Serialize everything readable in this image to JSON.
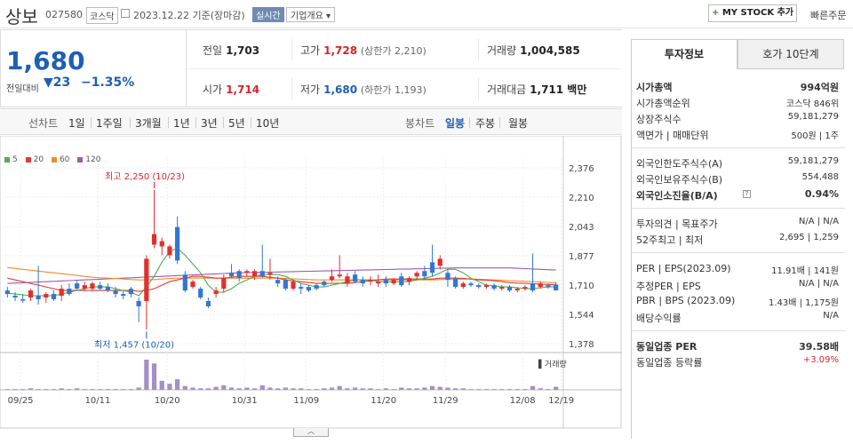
{
  "header": {
    "name": "상보",
    "code": "027580",
    "market": "코스닥",
    "date": "2023.12.22 기준(장마감)",
    "tag_realtime": "실시간",
    "tag_company": "기업개요 ▾",
    "mystock": "MY STOCK 추가",
    "quick_order": "빠른주문"
  },
  "price": {
    "current": "1,680",
    "change_label": "전일대비",
    "change": "▼23",
    "pct": "−1.35%"
  },
  "stats": {
    "prev_k": "전일",
    "prev_v": "1,703",
    "high_k": "고가",
    "high_v": "1,728",
    "high_limit": "(상한가 2,210)",
    "vol_k": "거래량",
    "vol_v": "1,004,585",
    "open_k": "시가",
    "open_v": "1,714",
    "low_k": "저가",
    "low_v": "1,680",
    "low_limit": "(하한가 1,193)",
    "amt_k": "거래대금",
    "amt_v": "1,711 백만"
  },
  "toolbar": {
    "line_label": "선차트",
    "periods": [
      "1일",
      "1주일",
      "3개월",
      "1년",
      "3년",
      "5년",
      "10년"
    ],
    "candle_label": "봉차트",
    "candles": [
      "일봉",
      "주봉",
      "월봉"
    ],
    "selected_candle": "일봉"
  },
  "legend": [
    {
      "name": "5",
      "color": "#4caf50"
    },
    {
      "name": "20",
      "color": "#e53935"
    },
    {
      "name": "60",
      "color": "#f08c2a"
    },
    {
      "name": "120",
      "color": "#9c59b6"
    }
  ],
  "chart_data": {
    "type": "candlestick",
    "yticks": [
      "2,376",
      "2,210",
      "2,043",
      "1,877",
      "1,710",
      "1,544",
      "1,378"
    ],
    "xticks": [
      "09/25",
      "10/11",
      "10/20",
      "10/31",
      "11/09",
      "11/20",
      "11/29",
      "12/08",
      "12/19"
    ],
    "annot_high": "최고 2,250 (10/23)",
    "annot_low": "최저 1,457 (10/20)",
    "volume_label": "거래량",
    "candles": [
      {
        "o": 1680,
        "c": 1660,
        "h": 1700,
        "l": 1640
      },
      {
        "o": 1650,
        "c": 1640,
        "h": 1670,
        "l": 1620
      },
      {
        "o": 1630,
        "c": 1625,
        "h": 1660,
        "l": 1610
      },
      {
        "o": 1640,
        "c": 1680,
        "h": 1690,
        "l": 1620
      },
      {
        "o": 1650,
        "c": 1630,
        "h": 1820,
        "l": 1600
      },
      {
        "o": 1640,
        "c": 1660,
        "h": 1670,
        "l": 1610
      },
      {
        "o": 1660,
        "c": 1630,
        "h": 1680,
        "l": 1620
      },
      {
        "o": 1650,
        "c": 1690,
        "h": 1710,
        "l": 1620
      },
      {
        "o": 1690,
        "c": 1660,
        "h": 1720,
        "l": 1650
      },
      {
        "o": 1720,
        "c": 1690,
        "h": 1740,
        "l": 1680
      },
      {
        "o": 1690,
        "c": 1710,
        "h": 1730,
        "l": 1680
      },
      {
        "o": 1690,
        "c": 1720,
        "h": 1730,
        "l": 1680
      },
      {
        "o": 1710,
        "c": 1690,
        "h": 1730,
        "l": 1680
      },
      {
        "o": 1700,
        "c": 1680,
        "h": 1720,
        "l": 1670
      },
      {
        "o": 1680,
        "c": 1660,
        "h": 1700,
        "l": 1640
      },
      {
        "o": 1660,
        "c": 1650,
        "h": 1680,
        "l": 1630
      },
      {
        "o": 1690,
        "c": 1660,
        "h": 1700,
        "l": 1640
      },
      {
        "o": 1620,
        "c": 1590,
        "h": 1640,
        "l": 1500
      },
      {
        "o": 1620,
        "c": 1860,
        "h": 1880,
        "l": 1457
      },
      {
        "o": 1940,
        "c": 2000,
        "h": 2250,
        "l": 1920
      },
      {
        "o": 1930,
        "c": 1960,
        "h": 1980,
        "l": 1880
      },
      {
        "o": 1880,
        "c": 1930,
        "h": 1940,
        "l": 1860
      },
      {
        "o": 2040,
        "c": 1850,
        "h": 2100,
        "l": 1830
      },
      {
        "o": 1770,
        "c": 1680,
        "h": 1790,
        "l": 1670
      },
      {
        "o": 1700,
        "c": 1730,
        "h": 1740,
        "l": 1690
      },
      {
        "o": 1690,
        "c": 1640,
        "h": 1700,
        "l": 1630
      },
      {
        "o": 1620,
        "c": 1590,
        "h": 1640,
        "l": 1580
      },
      {
        "o": 1660,
        "c": 1680,
        "h": 1700,
        "l": 1640
      },
      {
        "o": 1690,
        "c": 1750,
        "h": 1770,
        "l": 1670
      },
      {
        "o": 1780,
        "c": 1760,
        "h": 1830,
        "l": 1750
      },
      {
        "o": 1790,
        "c": 1750,
        "h": 1800,
        "l": 1730
      },
      {
        "o": 1780,
        "c": 1790,
        "h": 1800,
        "l": 1760
      },
      {
        "o": 1760,
        "c": 1790,
        "h": 1800,
        "l": 1740
      },
      {
        "o": 1790,
        "c": 1760,
        "h": 1940,
        "l": 1750
      },
      {
        "o": 1770,
        "c": 1780,
        "h": 1860,
        "l": 1740
      },
      {
        "o": 1740,
        "c": 1720,
        "h": 1760,
        "l": 1700
      },
      {
        "o": 1740,
        "c": 1690,
        "h": 1750,
        "l": 1680
      },
      {
        "o": 1690,
        "c": 1730,
        "h": 1740,
        "l": 1680
      },
      {
        "o": 1700,
        "c": 1690,
        "h": 1720,
        "l": 1660
      },
      {
        "o": 1700,
        "c": 1680,
        "h": 1710,
        "l": 1670
      },
      {
        "o": 1710,
        "c": 1690,
        "h": 1720,
        "l": 1680
      },
      {
        "o": 1730,
        "c": 1710,
        "h": 1740,
        "l": 1700
      },
      {
        "o": 1740,
        "c": 1760,
        "h": 1800,
        "l": 1730
      },
      {
        "o": 1760,
        "c": 1770,
        "h": 1880,
        "l": 1750
      },
      {
        "o": 1720,
        "c": 1760,
        "h": 1780,
        "l": 1700
      },
      {
        "o": 1770,
        "c": 1730,
        "h": 1790,
        "l": 1720
      },
      {
        "o": 1740,
        "c": 1720,
        "h": 1760,
        "l": 1700
      },
      {
        "o": 1730,
        "c": 1740,
        "h": 1760,
        "l": 1710
      },
      {
        "o": 1720,
        "c": 1730,
        "h": 1770,
        "l": 1700
      },
      {
        "o": 1740,
        "c": 1720,
        "h": 1760,
        "l": 1700
      },
      {
        "o": 1720,
        "c": 1740,
        "h": 1750,
        "l": 1710
      },
      {
        "o": 1760,
        "c": 1710,
        "h": 1780,
        "l": 1700
      },
      {
        "o": 1730,
        "c": 1750,
        "h": 1760,
        "l": 1710
      },
      {
        "o": 1760,
        "c": 1780,
        "h": 1790,
        "l": 1740
      },
      {
        "o": 1790,
        "c": 1760,
        "h": 1820,
        "l": 1740
      },
      {
        "o": 1840,
        "c": 1780,
        "h": 1940,
        "l": 1760
      },
      {
        "o": 1820,
        "c": 1860,
        "h": 1880,
        "l": 1800
      },
      {
        "o": 1780,
        "c": 1740,
        "h": 1800,
        "l": 1700
      },
      {
        "o": 1750,
        "c": 1700,
        "h": 1760,
        "l": 1690
      },
      {
        "o": 1700,
        "c": 1720,
        "h": 1730,
        "l": 1690
      },
      {
        "o": 1720,
        "c": 1710,
        "h": 1730,
        "l": 1700
      },
      {
        "o": 1710,
        "c": 1700,
        "h": 1720,
        "l": 1690
      },
      {
        "o": 1700,
        "c": 1710,
        "h": 1720,
        "l": 1690
      },
      {
        "o": 1710,
        "c": 1690,
        "h": 1720,
        "l": 1680
      },
      {
        "o": 1690,
        "c": 1700,
        "h": 1710,
        "l": 1680
      },
      {
        "o": 1700,
        "c": 1680,
        "h": 1710,
        "l": 1670
      },
      {
        "o": 1680,
        "c": 1690,
        "h": 1700,
        "l": 1670
      },
      {
        "o": 1690,
        "c": 1700,
        "h": 1710,
        "l": 1680
      },
      {
        "o": 1720,
        "c": 1680,
        "h": 1890,
        "l": 1670
      },
      {
        "o": 1700,
        "c": 1720,
        "h": 1730,
        "l": 1690
      },
      {
        "o": 1710,
        "c": 1700,
        "h": 1720,
        "l": 1690
      },
      {
        "o": 1714,
        "c": 1680,
        "h": 1728,
        "l": 1680
      }
    ],
    "volumes": [
      1,
      1,
      1,
      2,
      1,
      1,
      1,
      2,
      1,
      2,
      1,
      1,
      1,
      1,
      1,
      1,
      1,
      3,
      40,
      35,
      12,
      8,
      14,
      5,
      3,
      2,
      2,
      4,
      6,
      3,
      2,
      3,
      2,
      6,
      3,
      2,
      3,
      2,
      2,
      1,
      1,
      2,
      3,
      5,
      2,
      3,
      2,
      2,
      1,
      2,
      1,
      3,
      2,
      2,
      3,
      5,
      4,
      3,
      2,
      2,
      1,
      1,
      1,
      1,
      1,
      1,
      1,
      1,
      5,
      2,
      1,
      4
    ],
    "ma5": [
      1665,
      1660,
      1655,
      1650,
      1650,
      1650,
      1650,
      1660,
      1670,
      1680,
      1690,
      1700,
      1700,
      1700,
      1690,
      1680,
      1670,
      1650,
      1700,
      1760,
      1840,
      1900,
      1920,
      1880,
      1830,
      1780,
      1710,
      1670,
      1670,
      1690,
      1720,
      1740,
      1760,
      1770,
      1770,
      1770,
      1760,
      1740,
      1720,
      1710,
      1700,
      1700,
      1710,
      1720,
      1730,
      1740,
      1740,
      1740,
      1730,
      1730,
      1730,
      1730,
      1730,
      1740,
      1750,
      1760,
      1780,
      1800,
      1800,
      1780,
      1750,
      1730,
      1710,
      1705,
      1700,
      1700,
      1695,
      1690,
      1690,
      1695,
      1700,
      1700
    ],
    "ma20": [
      1750,
      1740,
      1730,
      1720,
      1710,
      1700,
      1690,
      1680,
      1680,
      1680,
      1680,
      1680,
      1680,
      1680,
      1680,
      1680,
      1680,
      1675,
      1680,
      1690,
      1710,
      1730,
      1740,
      1750,
      1760,
      1760,
      1755,
      1750,
      1750,
      1755,
      1760,
      1760,
      1760,
      1760,
      1755,
      1750,
      1740,
      1735,
      1730,
      1725,
      1720,
      1720,
      1720,
      1720,
      1720,
      1725,
      1730,
      1735,
      1740,
      1745,
      1745,
      1745,
      1745,
      1745,
      1745,
      1745,
      1750,
      1750,
      1750,
      1748,
      1745,
      1740,
      1738,
      1735,
      1730,
      1725,
      1722,
      1720,
      1718,
      1716,
      1714,
      1712
    ],
    "ma60": [
      1810,
      1805,
      1800,
      1795,
      1790,
      1785,
      1780,
      1775,
      1770,
      1765,
      1760,
      1755,
      1752,
      1750,
      1748,
      1745,
      1742,
      1740,
      1740,
      1742,
      1745,
      1748,
      1750,
      1750,
      1750,
      1750,
      1750,
      1750,
      1750,
      1750,
      1750,
      1750,
      1750,
      1750,
      1750,
      1750,
      1748,
      1746,
      1744,
      1742,
      1740,
      1740,
      1740,
      1740,
      1740,
      1740,
      1740,
      1740,
      1740,
      1740,
      1740,
      1740,
      1740,
      1740,
      1740,
      1740,
      1742,
      1744,
      1745,
      1745,
      1745,
      1744,
      1742,
      1740,
      1738,
      1736,
      1734,
      1732,
      1730,
      1728,
      1726,
      1724
    ],
    "ma120": [
      1720,
      1722,
      1724,
      1726,
      1728,
      1730,
      1732,
      1734,
      1736,
      1738,
      1740,
      1742,
      1744,
      1746,
      1748,
      1750,
      1752,
      1754,
      1756,
      1758,
      1760,
      1762,
      1764,
      1766,
      1768,
      1770,
      1772,
      1774,
      1776,
      1778,
      1780,
      1781,
      1782,
      1783,
      1784,
      1785,
      1786,
      1787,
      1788,
      1789,
      1790,
      1791,
      1792,
      1793,
      1794,
      1795,
      1796,
      1797,
      1798,
      1799,
      1800,
      1801,
      1802,
      1803,
      1804,
      1805,
      1806,
      1807,
      1808,
      1808,
      1808,
      1808,
      1808,
      1808,
      1808,
      1808,
      1806,
      1804,
      1802,
      1800,
      1798,
      1796
    ]
  },
  "right": {
    "tab_active": "투자정보",
    "tab_other": "호가 10단계",
    "mcap_k": "시가총액",
    "mcap_v": "994억원",
    "mrank_k": "시가총액순위",
    "mrank_v": "코스닥 846위",
    "shares_k": "상장주식수",
    "shares_v": "59,181,279",
    "par_k": "액면가 | 매매단위",
    "par_v": "500원 | 1주",
    "flimit_k": "외국인한도주식수(A)",
    "flimit_v": "59,181,279",
    "fhold_k": "외국인보유주식수(B)",
    "fhold_v": "554,488",
    "frate_k": "외국인소진율(B/A)",
    "frate_v": "0.94%",
    "opinion_k": "투자의견 | 목표주가",
    "opinion_v": "N/A | N/A",
    "w52_k": "52주최고 | 최저",
    "w52_v": "2,695 | 1,259",
    "per_k": "PER | EPS(2023.09)",
    "per_v": "11.91배 | 141원",
    "eper_k": "추정PER | EPS",
    "eper_v": "N/A | N/A",
    "pbr_k": "PBR | BPS (2023.09)",
    "pbr_v": "1.43배 | 1,175원",
    "div_k": "배당수익률",
    "div_v": "N/A",
    "iper_k": "동일업종 PER",
    "iper_v": "39.58배",
    "irate_k": "동일업종 등락률",
    "irate_v": "+3.09%"
  }
}
